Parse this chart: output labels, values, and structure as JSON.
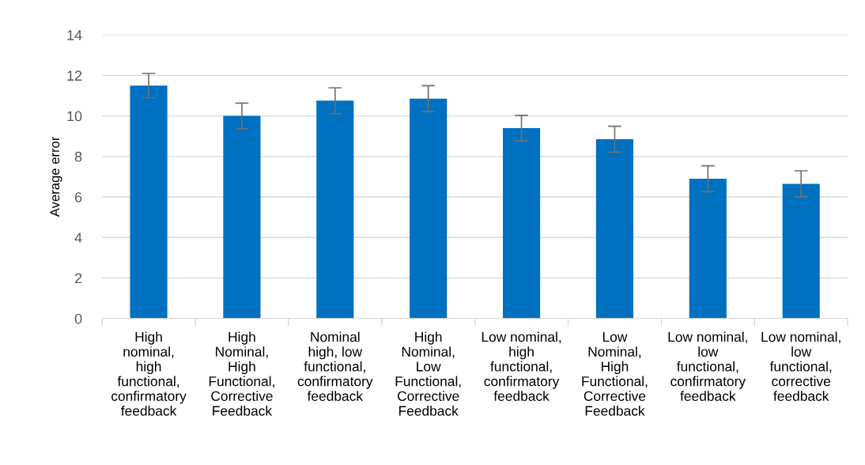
{
  "chart_data": {
    "type": "bar",
    "ylabel": "Average error",
    "categories": [
      "High\nnominal,\nhigh\nfunctional,\nconfirmatory\nfeedback",
      "High\nNominal,\nHigh\nFunctional,\nCorrective\nFeedback",
      "Nominal\nhigh, low\nfunctional,\nconfirmatory\nfeedback",
      "High\nNominal,\nLow\nFunctional,\nCorrective\nFeedback",
      "Low nominal,\nhigh\nfunctional,\nconfirmatory\nfeedback",
      "Low\nNominal,\nHigh\nFunctional,\nCorrective\nFeedback",
      "Low nominal,\nlow\nfunctional,\nconfirmatory\nfeedback",
      "Low nominal,\nlow\nfunctional,\ncorrective\nfeedback"
    ],
    "values": [
      11.5,
      10.0,
      10.75,
      10.85,
      9.4,
      8.85,
      6.9,
      6.65
    ],
    "errors": [
      0.6,
      0.63,
      0.64,
      0.64,
      0.63,
      0.64,
      0.64,
      0.64
    ],
    "color": "#0070c0",
    "ylim": [
      0,
      14
    ],
    "yticks": [
      0,
      2,
      4,
      6,
      8,
      10,
      12,
      14
    ],
    "grid": "y",
    "legend": false
  }
}
